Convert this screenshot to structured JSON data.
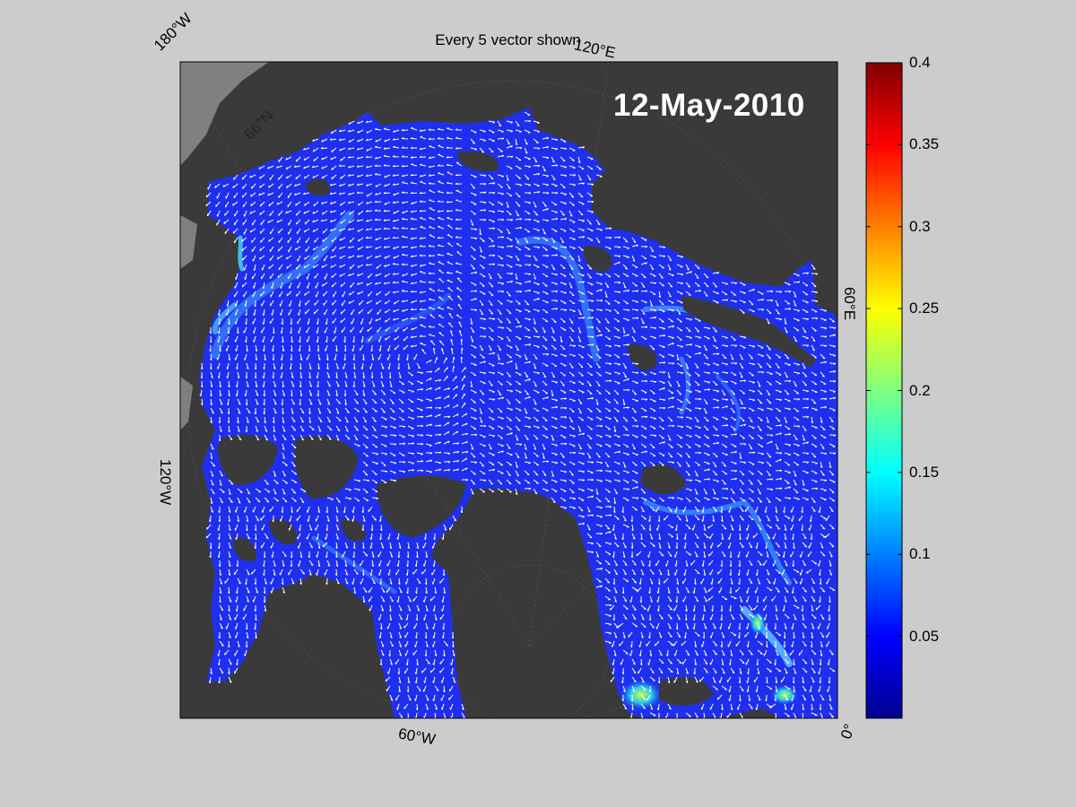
{
  "figure": {
    "title": "Every 5 vector shown",
    "date": "12-May-2010"
  },
  "map": {
    "projection": "north-polar-stereographic",
    "coordinate_labels": {
      "lon_180w": "180°W",
      "lon_120e": "120°E",
      "lat_66n": "66°N",
      "lon_60e": "60°E",
      "lon_120w": "120°W",
      "lon_60w": "60°W",
      "lon_0": "0°"
    },
    "colors": {
      "land": "#3a3a3a",
      "outside_domain": "#808080",
      "ocean_base": "#1f2ff0",
      "vectors": "#ffffff",
      "background": "#cccccc"
    }
  },
  "colorbar": {
    "colormap": "jet",
    "range": [
      0,
      0.4
    ],
    "ticks": [
      "0.4",
      "0.35",
      "0.3",
      "0.25",
      "0.2",
      "0.15",
      "0.1",
      "0.05"
    ]
  }
}
